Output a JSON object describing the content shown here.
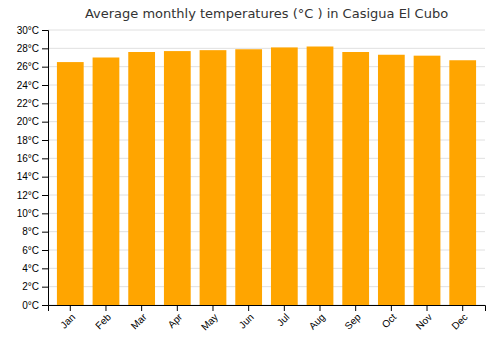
{
  "chart_data": {
    "type": "bar",
    "title": "Average monthly temperatures (°C ) in Casigua El Cubo",
    "categories": [
      "Jan",
      "Feb",
      "Mar",
      "Apr",
      "May",
      "Jun",
      "Jul",
      "Aug",
      "Sep",
      "Oct",
      "Nov",
      "Dec"
    ],
    "values": [
      26.5,
      27.0,
      27.6,
      27.7,
      27.8,
      27.9,
      28.1,
      28.2,
      27.6,
      27.3,
      27.2,
      26.7
    ],
    "color": "#FFA500",
    "ylim": [
      0,
      30
    ],
    "yticks": [
      {
        "value": 0,
        "label": "0°C"
      },
      {
        "value": 2,
        "label": "2°C"
      },
      {
        "value": 4,
        "label": "4°C"
      },
      {
        "value": 6,
        "label": "6°C"
      },
      {
        "value": 8,
        "label": "8°C"
      },
      {
        "value": 10,
        "label": "10°C"
      },
      {
        "value": 12,
        "label": "12°C"
      },
      {
        "value": 14,
        "label": "14°C"
      },
      {
        "value": 16,
        "label": "16°C"
      },
      {
        "value": 18,
        "label": "18°C"
      },
      {
        "value": 20,
        "label": "20°C"
      },
      {
        "value": 22,
        "label": "22°C"
      },
      {
        "value": 24,
        "label": "24°C"
      },
      {
        "value": 26,
        "label": "26°C"
      },
      {
        "value": 28,
        "label": "28°C"
      },
      {
        "value": 30,
        "label": "30°C"
      }
    ],
    "grid": true
  }
}
